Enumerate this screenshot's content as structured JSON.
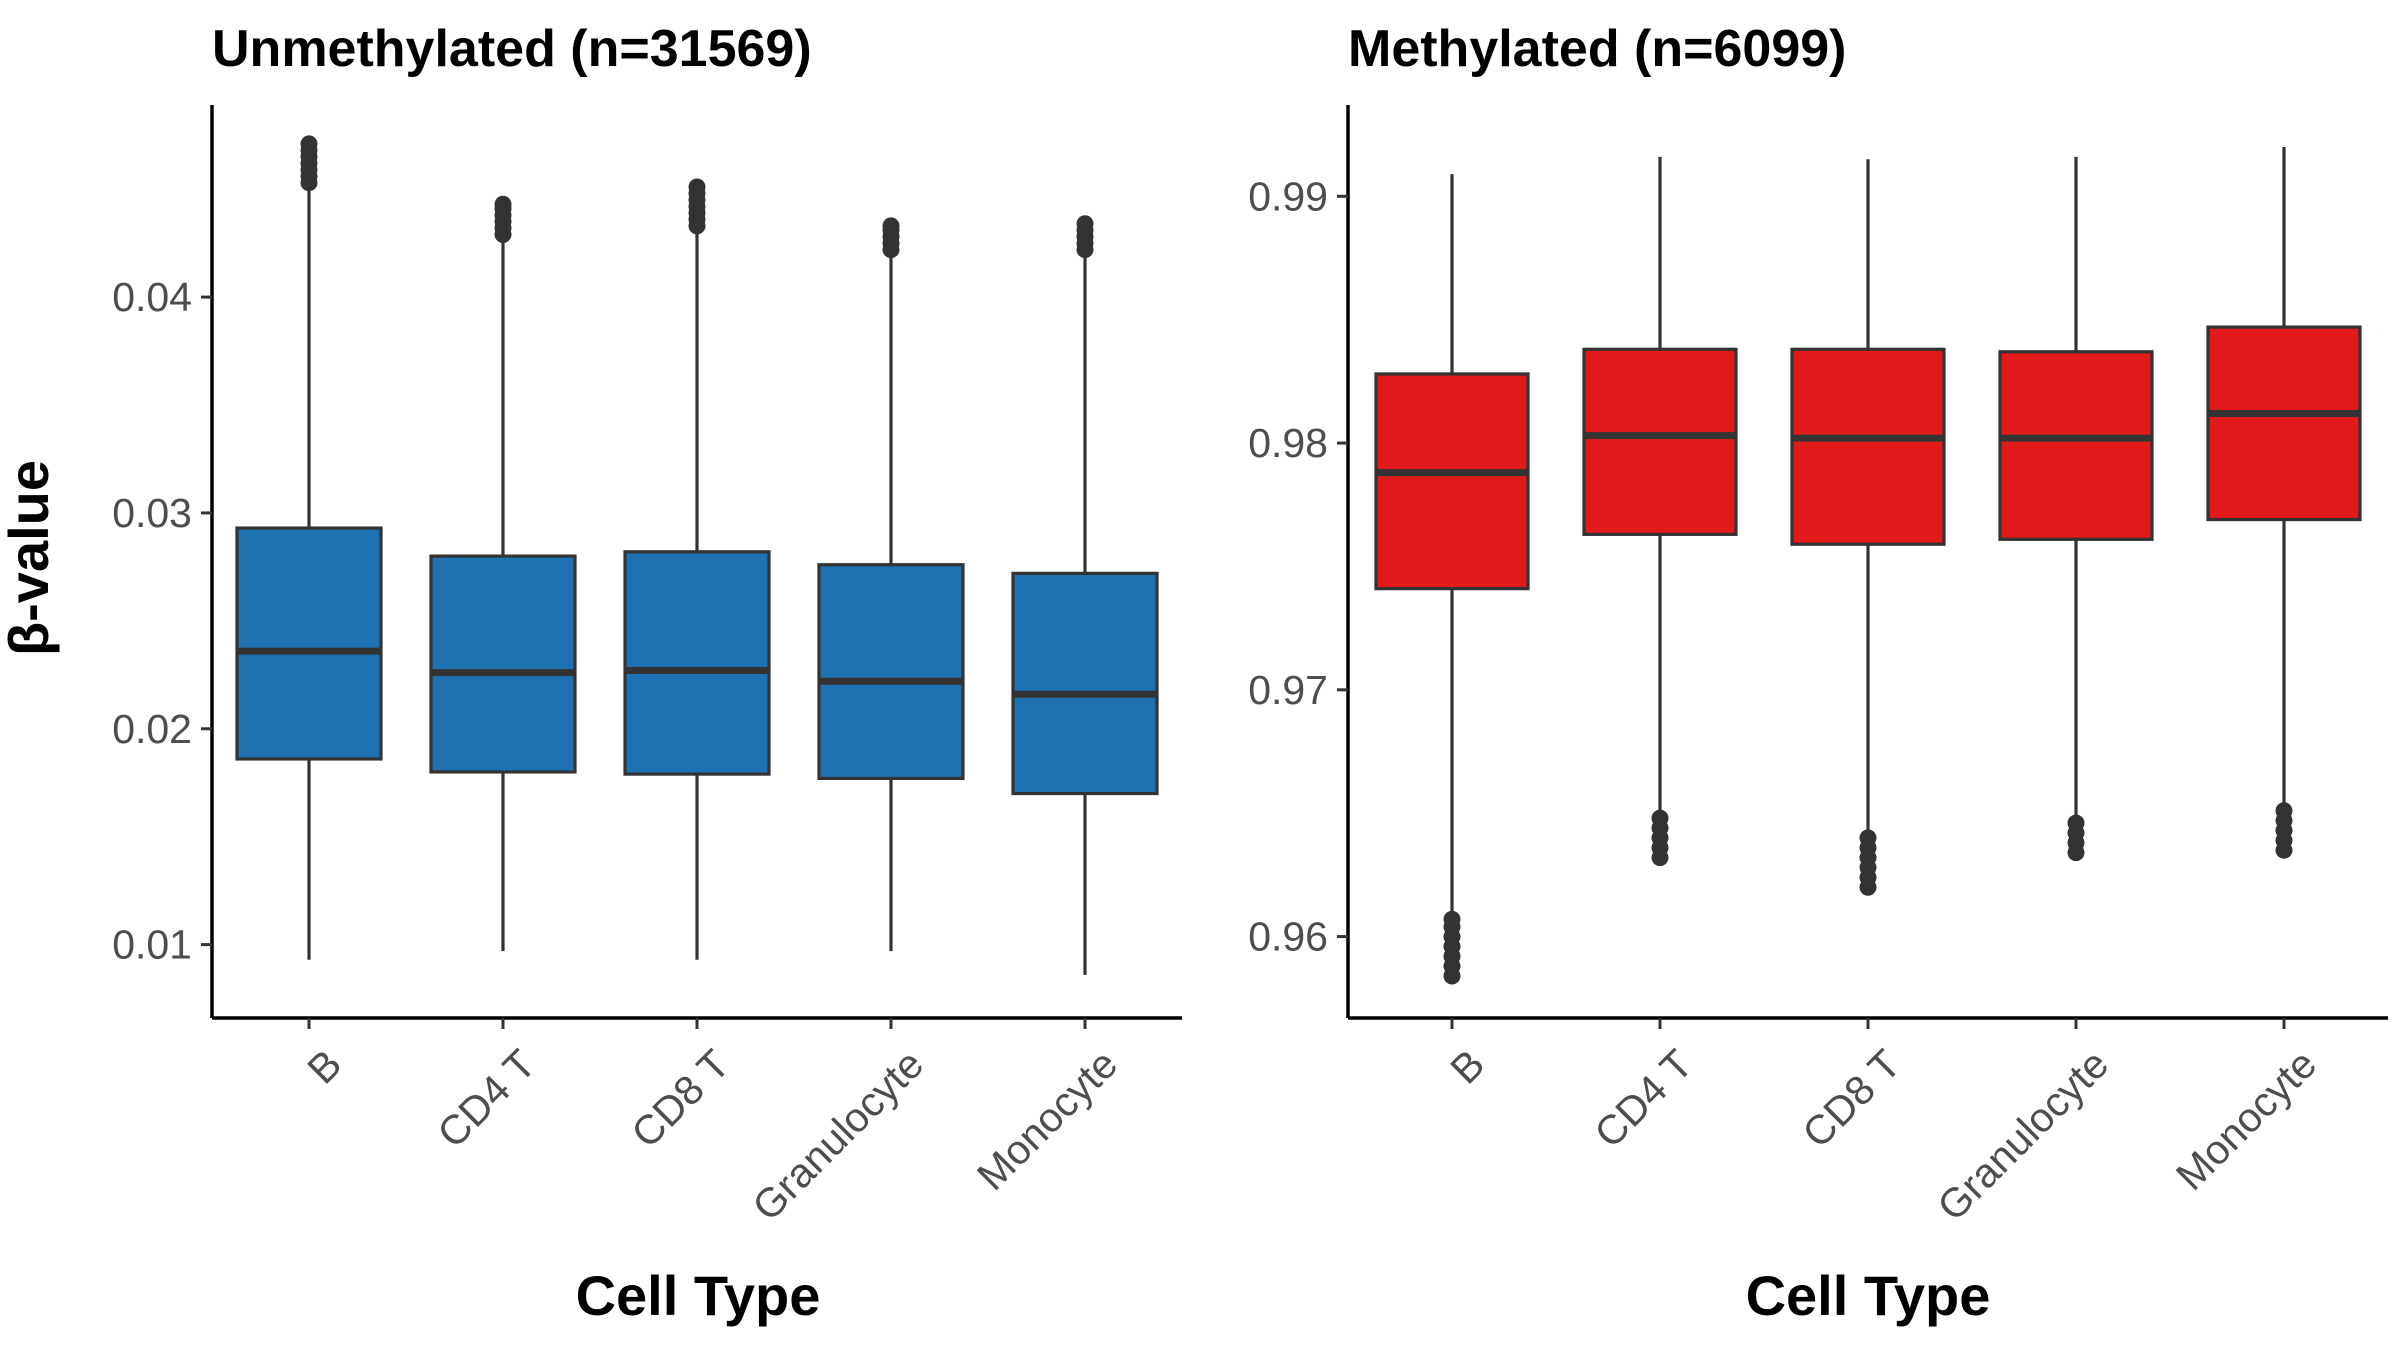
{
  "chart_data": [
    {
      "type": "box",
      "title": "Unmethylated (n=31569)",
      "xlabel": "Cell Type",
      "ylabel": "β-value",
      "categories": [
        "B",
        "CD4 T",
        "CD8 T",
        "Granulocyte",
        "Monocyte"
      ],
      "ylim": [
        0.0066,
        0.0489
      ],
      "yticks": [
        0.01,
        0.02,
        0.03,
        0.04
      ],
      "ytick_labels": [
        "0.01",
        "0.02",
        "0.03",
        "0.04"
      ],
      "fill": "#1f72b2",
      "edge": "#333333",
      "boxes": [
        {
          "whisker_low": 0.0093,
          "q1": 0.0186,
          "median": 0.0236,
          "q3": 0.0293,
          "whisker_high": 0.0452,
          "outliers": [
            0.0453,
            0.0456,
            0.0459,
            0.0462,
            0.0465,
            0.0468,
            0.0471
          ]
        },
        {
          "whisker_low": 0.0097,
          "q1": 0.018,
          "median": 0.0226,
          "q3": 0.028,
          "whisker_high": 0.0428,
          "outliers": [
            0.0429,
            0.0432,
            0.0435,
            0.0438,
            0.0441,
            0.0443
          ]
        },
        {
          "whisker_low": 0.0093,
          "q1": 0.0179,
          "median": 0.0227,
          "q3": 0.0282,
          "whisker_high": 0.0432,
          "outliers": [
            0.0433,
            0.0436,
            0.0439,
            0.0442,
            0.0445,
            0.0448,
            0.0451
          ]
        },
        {
          "whisker_low": 0.0097,
          "q1": 0.0177,
          "median": 0.0222,
          "q3": 0.0276,
          "whisker_high": 0.0421,
          "outliers": [
            0.0422,
            0.0425,
            0.0428,
            0.0431,
            0.0433
          ]
        },
        {
          "whisker_low": 0.0086,
          "q1": 0.017,
          "median": 0.0216,
          "q3": 0.0272,
          "whisker_high": 0.0421,
          "outliers": [
            0.0422,
            0.0425,
            0.0428,
            0.0431,
            0.0434
          ]
        }
      ]
    },
    {
      "type": "box",
      "title": "Methylated (n=6099)",
      "xlabel": "Cell Type",
      "ylabel": "",
      "categories": [
        "B",
        "CD4 T",
        "CD8 T",
        "Granulocyte",
        "Monocyte"
      ],
      "ylim": [
        0.9567,
        0.9937
      ],
      "yticks": [
        0.96,
        0.97,
        0.98,
        0.99
      ],
      "ytick_labels": [
        "0.96",
        "0.97",
        "0.98",
        "0.99"
      ],
      "fill": "#e31a1c",
      "edge": "#333333",
      "boxes": [
        {
          "whisker_low": 0.961,
          "q1": 0.9741,
          "median": 0.9788,
          "q3": 0.9828,
          "whisker_high": 0.9909,
          "outliers": [
            0.9584,
            0.9588,
            0.9592,
            0.9596,
            0.96,
            0.9604,
            0.9607
          ]
        },
        {
          "whisker_low": 0.965,
          "q1": 0.9763,
          "median": 0.9803,
          "q3": 0.9838,
          "whisker_high": 0.9916,
          "outliers": [
            0.9632,
            0.9636,
            0.964,
            0.9644,
            0.9648
          ]
        },
        {
          "whisker_low": 0.9641,
          "q1": 0.9759,
          "median": 0.9802,
          "q3": 0.9838,
          "whisker_high": 0.9915,
          "outliers": [
            0.962,
            0.9624,
            0.9628,
            0.9632,
            0.9636,
            0.964
          ]
        },
        {
          "whisker_low": 0.9647,
          "q1": 0.9761,
          "median": 0.9802,
          "q3": 0.9837,
          "whisker_high": 0.9916,
          "outliers": [
            0.9634,
            0.9638,
            0.9642,
            0.9646
          ]
        },
        {
          "whisker_low": 0.9653,
          "q1": 0.9769,
          "median": 0.9812,
          "q3": 0.9847,
          "whisker_high": 0.992,
          "outliers": [
            0.9635,
            0.9639,
            0.9643,
            0.9647,
            0.9651
          ]
        }
      ]
    }
  ]
}
